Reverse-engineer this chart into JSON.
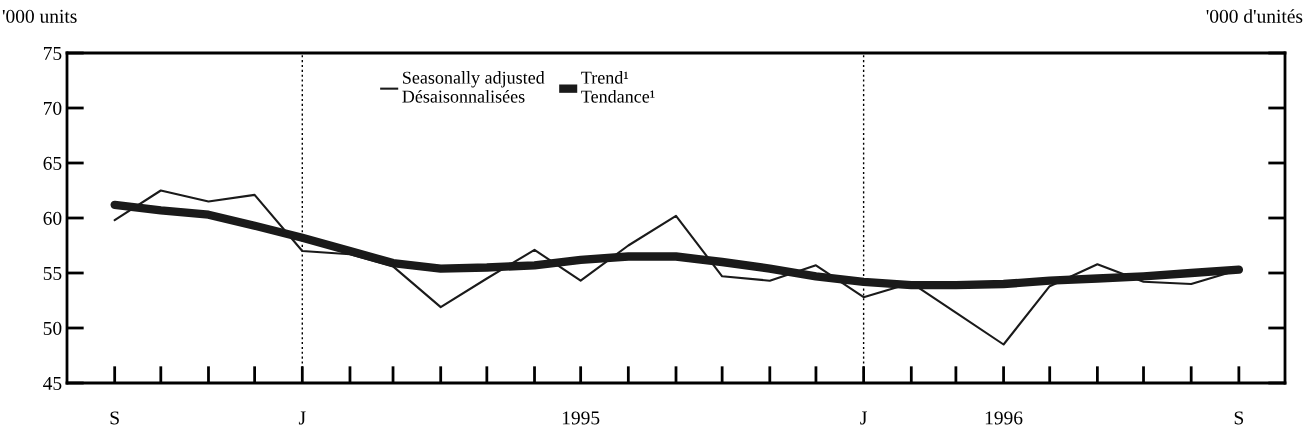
{
  "chart_data": {
    "type": "line",
    "ylabel": "'000 units",
    "y2label": "'000 d'unités",
    "x": [
      "1994-09",
      "1994-10",
      "1994-11",
      "1994-12",
      "1995-01",
      "1995-02",
      "1995-03",
      "1995-04",
      "1995-05",
      "1995-06",
      "1995-07",
      "1995-08",
      "1995-09",
      "1995-10",
      "1995-11",
      "1995-12",
      "1996-01",
      "1996-02",
      "1996-03",
      "1996-04",
      "1996-05",
      "1996-06",
      "1996-07",
      "1996-08",
      "1996-09"
    ],
    "series": [
      {
        "name": "Seasonally adjusted\nDésaisonnalisées",
        "color": "#1a1a1a",
        "values": [
          59.8,
          62.5,
          61.5,
          62.1,
          57.0,
          56.7,
          55.6,
          51.9,
          54.5,
          57.1,
          54.3,
          57.5,
          60.2,
          54.7,
          54.3,
          55.7,
          52.8,
          54.1,
          51.4,
          48.5,
          53.8,
          55.8,
          54.2,
          54.0,
          55.3
        ]
      },
      {
        "name": "Trend¹\nTendance¹",
        "color": "#1a1a1a",
        "values": [
          61.2,
          60.7,
          60.3,
          59.3,
          58.2,
          57.0,
          55.9,
          55.4,
          55.5,
          55.7,
          56.2,
          56.5,
          56.5,
          56.0,
          55.4,
          54.7,
          54.2,
          53.9,
          53.9,
          54.0,
          54.3,
          54.5,
          54.7,
          55.0,
          55.3
        ]
      }
    ],
    "xlim": [
      "1994-08",
      "1996-10"
    ],
    "xticks": [
      {
        "value": "1994-09",
        "label": "S"
      },
      {
        "value": "1995-01",
        "label": "J"
      },
      {
        "value": "1995-07",
        "label": "1995"
      },
      {
        "value": "1996-01",
        "label": "J"
      },
      {
        "value": "1996-04",
        "label": "1996"
      },
      {
        "value": "1996-09",
        "label": "S"
      }
    ],
    "ylim": [
      45,
      75
    ],
    "yticks": [
      45,
      50,
      55,
      60,
      65,
      70,
      75
    ],
    "ref_lines": [
      {
        "axis": "x",
        "value": "1995-01",
        "color": "#000000",
        "line_style": "dotted"
      },
      {
        "axis": "x",
        "value": "1996-01",
        "color": "#000000",
        "line_style": "dotted"
      }
    ],
    "grid": false,
    "legend": "top",
    "marker": "none",
    "line_style": "solid"
  }
}
